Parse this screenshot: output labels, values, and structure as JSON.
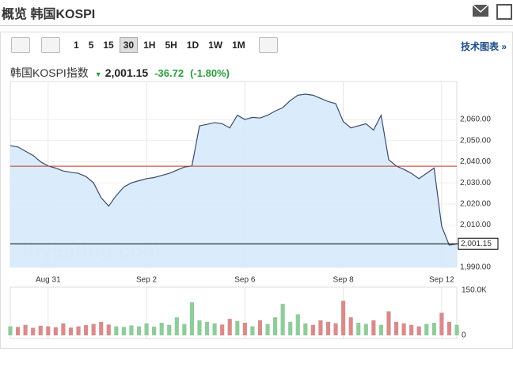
{
  "header": {
    "title": "概览 韩国KOSPI"
  },
  "toolbar": {
    "intervals": [
      "1",
      "5",
      "15",
      "30",
      "1H",
      "5H",
      "1D",
      "1W",
      "1M"
    ],
    "active": "30",
    "link": "技术图表 »"
  },
  "quote": {
    "name": "韩国KOSPI指数",
    "price": "2,001.15",
    "change": "-36.72",
    "change_percent": "(-1.80%)"
  },
  "chart_data": {
    "type": "line",
    "watermark": "Investing.com",
    "categories": [
      null,
      null,
      null,
      null,
      null,
      "Aug 31",
      null,
      null,
      null,
      null,
      null,
      null,
      null,
      null,
      null,
      null,
      null,
      null,
      "Sep 2",
      null,
      null,
      null,
      null,
      null,
      null,
      null,
      null,
      null,
      null,
      null,
      null,
      "Sep 6",
      null,
      null,
      null,
      null,
      null,
      null,
      null,
      null,
      null,
      null,
      null,
      null,
      "Sep 8",
      null,
      null,
      null,
      null,
      null,
      null,
      null,
      null,
      null,
      null,
      null,
      null,
      "Sep 12",
      null,
      null
    ],
    "series": [
      {
        "name": "韩国KOSPI指数",
        "color": "#3a4a6b",
        "fill": "#d6e9fb",
        "values": [
          2047.6,
          2047,
          2045,
          2043,
          2040,
          2038,
          2037,
          2035.6,
          2035,
          2034.5,
          2033,
          2030,
          2023,
          2019,
          2024,
          2028,
          2030,
          2031,
          2032,
          2032.5,
          2033.5,
          2034.5,
          2036,
          2037.5,
          2038,
          2057,
          2057.7,
          2058.5,
          2058,
          2056,
          2062,
          2060,
          2061,
          2060.7,
          2062,
          2064,
          2065.6,
          2069,
          2071.5,
          2072,
          2071.5,
          2070,
          2068.5,
          2067.5,
          2059,
          2056,
          2057,
          2058,
          2055,
          2062,
          2041,
          2038,
          2036.4,
          2034.5,
          2032,
          2034.5,
          2037,
          2009.5,
          2000.5,
          2001.15
        ]
      }
    ],
    "last_label": "2,001.15",
    "prev_close": 2037.87,
    "prev_close_color": "#c0392b",
    "ylim": [
      1990,
      2078
    ],
    "yticks": [
      {
        "value": 1990,
        "label": "1,990.00"
      },
      {
        "value": 2001.15,
        "label": "2,001.15"
      },
      {
        "value": 2010,
        "label": "2,010.00"
      },
      {
        "value": 2020,
        "label": "2,020.00"
      },
      {
        "value": 2030,
        "label": "2,030.00"
      },
      {
        "value": 2040,
        "label": "2,040.00"
      },
      {
        "value": 2050,
        "label": "2,050.00"
      },
      {
        "value": 2060,
        "label": "2,060.00"
      }
    ],
    "volume": {
      "up_color": "#8fcc9a",
      "down_color": "#d98b8b",
      "values": [
        30000,
        28000,
        35000,
        25000,
        32000,
        30000,
        27000,
        40000,
        26000,
        30000,
        34000,
        38000,
        45000,
        36000,
        30000,
        28000,
        33000,
        30000,
        40000,
        29000,
        42000,
        35000,
        60000,
        38000,
        110000,
        50000,
        45000,
        40000,
        36000,
        55000,
        48000,
        42000,
        30000,
        50000,
        38000,
        60000,
        105000,
        45000,
        70000,
        40000,
        35000,
        50000,
        45000,
        40000,
        115000,
        60000,
        42000,
        38000,
        50000,
        35000,
        80000,
        45000,
        40000,
        35000,
        30000,
        38000,
        42000,
        75000,
        45000,
        35000
      ],
      "vlim": [
        0,
        150000
      ],
      "vticks": [
        0,
        {
          "value": 150000,
          "label": "150.0K"
        }
      ]
    }
  }
}
